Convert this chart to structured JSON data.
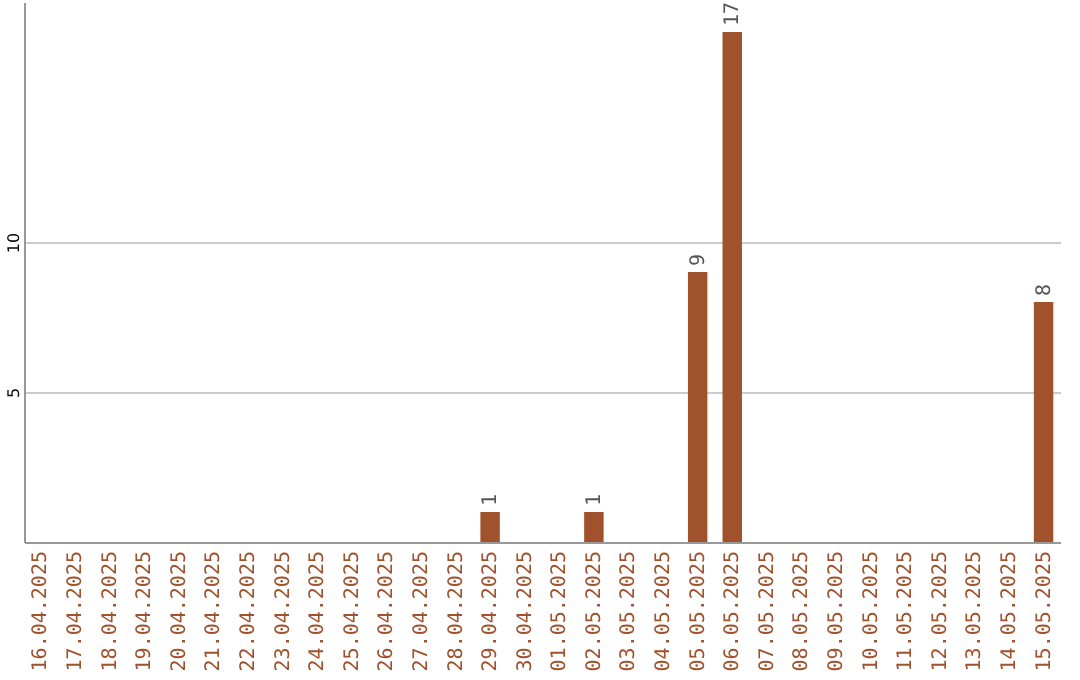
{
  "chart_data": {
    "type": "bar",
    "categories": [
      "16.04.2025",
      "17.04.2025",
      "18.04.2025",
      "19.04.2025",
      "20.04.2025",
      "21.04.2025",
      "22.04.2025",
      "23.04.2025",
      "24.04.2025",
      "25.04.2025",
      "26.04.2025",
      "27.04.2025",
      "28.04.2025",
      "29.04.2025",
      "30.04.2025",
      "01.05.2025",
      "02.05.2025",
      "03.05.2025",
      "04.05.2025",
      "05.05.2025",
      "06.05.2025",
      "07.05.2025",
      "08.05.2025",
      "09.05.2025",
      "10.05.2025",
      "11.05.2025",
      "12.05.2025",
      "13.05.2025",
      "14.05.2025",
      "15.05.2025"
    ],
    "values": [
      0,
      0,
      0,
      0,
      0,
      0,
      0,
      0,
      0,
      0,
      0,
      0,
      0,
      1,
      0,
      0,
      1,
      0,
      0,
      9,
      17,
      0,
      0,
      0,
      0,
      0,
      0,
      0,
      0,
      8
    ],
    "value_labels": [
      null,
      null,
      null,
      null,
      null,
      null,
      null,
      null,
      null,
      null,
      null,
      null,
      null,
      "1",
      null,
      null,
      "1",
      null,
      null,
      "9",
      "17",
      null,
      null,
      null,
      null,
      null,
      null,
      null,
      null,
      "8"
    ],
    "color": "#a0522d",
    "ylim": [
      0,
      18
    ],
    "yticks": [
      5,
      10
    ],
    "grid": "y"
  }
}
